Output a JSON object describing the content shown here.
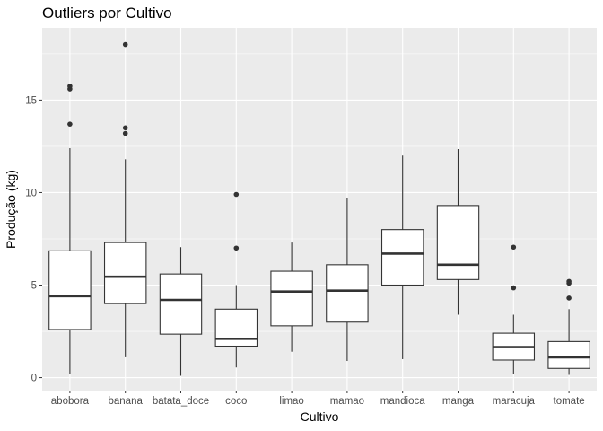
{
  "chart_data": {
    "type": "boxplot",
    "title": "Outliers por Cultivo",
    "xlabel": "Cultivo",
    "ylabel": "Produção (kg)",
    "ylim": [
      -0.7,
      18.9
    ],
    "yticks": [
      0,
      5,
      10,
      15
    ],
    "grid": true,
    "categories": [
      "abobora",
      "banana",
      "batata_doce",
      "coco",
      "limao",
      "mamao",
      "mandioca",
      "manga",
      "maracuja",
      "tomate"
    ],
    "boxes": [
      {
        "category": "abobora",
        "min": 0.2,
        "q1": 2.6,
        "median": 4.4,
        "q3": 6.85,
        "max": 12.4,
        "outliers": [
          13.7,
          15.6,
          15.75
        ]
      },
      {
        "category": "banana",
        "min": 1.1,
        "q1": 4.0,
        "median": 5.45,
        "q3": 7.3,
        "max": 11.8,
        "outliers": [
          13.2,
          13.5,
          18.0
        ]
      },
      {
        "category": "batata_doce",
        "min": 0.1,
        "q1": 2.35,
        "median": 4.2,
        "q3": 5.6,
        "max": 7.05,
        "outliers": []
      },
      {
        "category": "coco",
        "min": 0.55,
        "q1": 1.7,
        "median": 2.1,
        "q3": 3.7,
        "max": 5.0,
        "outliers": [
          7.0,
          9.9
        ]
      },
      {
        "category": "limao",
        "min": 1.4,
        "q1": 2.8,
        "median": 4.65,
        "q3": 5.75,
        "max": 7.3,
        "outliers": []
      },
      {
        "category": "mamao",
        "min": 0.9,
        "q1": 3.0,
        "median": 4.7,
        "q3": 6.1,
        "max": 9.7,
        "outliers": []
      },
      {
        "category": "mandioca",
        "min": 1.0,
        "q1": 5.0,
        "median": 6.7,
        "q3": 8.0,
        "max": 12.0,
        "outliers": []
      },
      {
        "category": "manga",
        "min": 3.4,
        "q1": 5.3,
        "median": 6.1,
        "q3": 9.3,
        "max": 12.35,
        "outliers": []
      },
      {
        "category": "maracuja",
        "min": 0.2,
        "q1": 0.95,
        "median": 1.65,
        "q3": 2.4,
        "max": 3.4,
        "outliers": [
          4.85,
          7.05
        ]
      },
      {
        "category": "tomate",
        "min": 0.15,
        "q1": 0.5,
        "median": 1.1,
        "q3": 1.95,
        "max": 3.7,
        "outliers": [
          4.3,
          5.1,
          5.2
        ]
      }
    ]
  }
}
